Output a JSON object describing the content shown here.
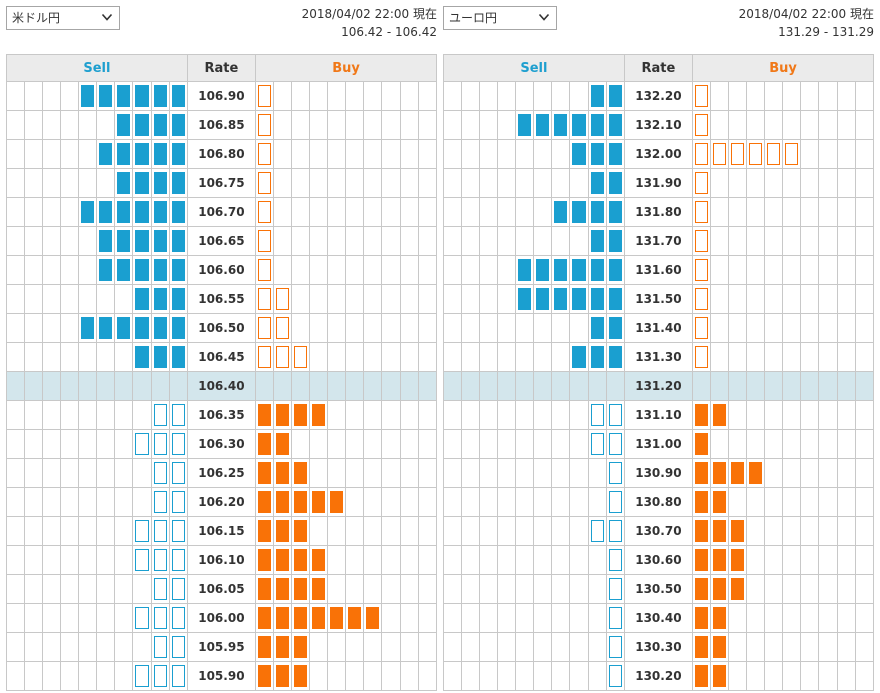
{
  "colors": {
    "sell": "#1a9fd0",
    "buy": "#f97207",
    "current_row": "#d3e6ec"
  },
  "panels": [
    {
      "pair": "米ドル円",
      "timestamp": "2018/04/02 22:00 現在",
      "quote": "106.42 - 106.42",
      "headers": {
        "sell": "Sell",
        "rate": "Rate",
        "buy": "Buy"
      },
      "current_rate": "106.40",
      "upper_rows": [
        {
          "rate": "106.90",
          "sell": 6,
          "buy": 1
        },
        {
          "rate": "106.85",
          "sell": 4,
          "buy": 1
        },
        {
          "rate": "106.80",
          "sell": 5,
          "buy": 1
        },
        {
          "rate": "106.75",
          "sell": 4,
          "buy": 1
        },
        {
          "rate": "106.70",
          "sell": 6,
          "buy": 1
        },
        {
          "rate": "106.65",
          "sell": 5,
          "buy": 1
        },
        {
          "rate": "106.60",
          "sell": 5,
          "buy": 1
        },
        {
          "rate": "106.55",
          "sell": 3,
          "buy": 2
        },
        {
          "rate": "106.50",
          "sell": 6,
          "buy": 2
        },
        {
          "rate": "106.45",
          "sell": 3,
          "buy": 3
        }
      ],
      "lower_rows": [
        {
          "rate": "106.35",
          "sell": 2,
          "buy": 4
        },
        {
          "rate": "106.30",
          "sell": 3,
          "buy": 2
        },
        {
          "rate": "106.25",
          "sell": 2,
          "buy": 3
        },
        {
          "rate": "106.20",
          "sell": 2,
          "buy": 5
        },
        {
          "rate": "106.15",
          "sell": 3,
          "buy": 3
        },
        {
          "rate": "106.10",
          "sell": 3,
          "buy": 4
        },
        {
          "rate": "106.05",
          "sell": 2,
          "buy": 4
        },
        {
          "rate": "106.00",
          "sell": 3,
          "buy": 7
        },
        {
          "rate": "105.95",
          "sell": 2,
          "buy": 3
        },
        {
          "rate": "105.90",
          "sell": 3,
          "buy": 3
        }
      ]
    },
    {
      "pair": "ユーロ円",
      "timestamp": "2018/04/02 22:00 現在",
      "quote": "131.29 - 131.29",
      "headers": {
        "sell": "Sell",
        "rate": "Rate",
        "buy": "Buy"
      },
      "current_rate": "131.20",
      "upper_rows": [
        {
          "rate": "132.20",
          "sell": 2,
          "buy": 1
        },
        {
          "rate": "132.10",
          "sell": 6,
          "buy": 1
        },
        {
          "rate": "132.00",
          "sell": 3,
          "buy": 6
        },
        {
          "rate": "131.90",
          "sell": 2,
          "buy": 1
        },
        {
          "rate": "131.80",
          "sell": 4,
          "buy": 1
        },
        {
          "rate": "131.70",
          "sell": 2,
          "buy": 1
        },
        {
          "rate": "131.60",
          "sell": 6,
          "buy": 1
        },
        {
          "rate": "131.50",
          "sell": 6,
          "buy": 1
        },
        {
          "rate": "131.40",
          "sell": 2,
          "buy": 1
        },
        {
          "rate": "131.30",
          "sell": 3,
          "buy": 1
        }
      ],
      "lower_rows": [
        {
          "rate": "131.10",
          "sell": 2,
          "buy": 2
        },
        {
          "rate": "131.00",
          "sell": 2,
          "buy": 1
        },
        {
          "rate": "130.90",
          "sell": 1,
          "buy": 4
        },
        {
          "rate": "130.80",
          "sell": 1,
          "buy": 2
        },
        {
          "rate": "130.70",
          "sell": 2,
          "buy": 3
        },
        {
          "rate": "130.60",
          "sell": 1,
          "buy": 3
        },
        {
          "rate": "130.50",
          "sell": 1,
          "buy": 3
        },
        {
          "rate": "130.40",
          "sell": 1,
          "buy": 2
        },
        {
          "rate": "130.30",
          "sell": 1,
          "buy": 2
        },
        {
          "rate": "130.20",
          "sell": 1,
          "buy": 2
        }
      ]
    }
  ]
}
